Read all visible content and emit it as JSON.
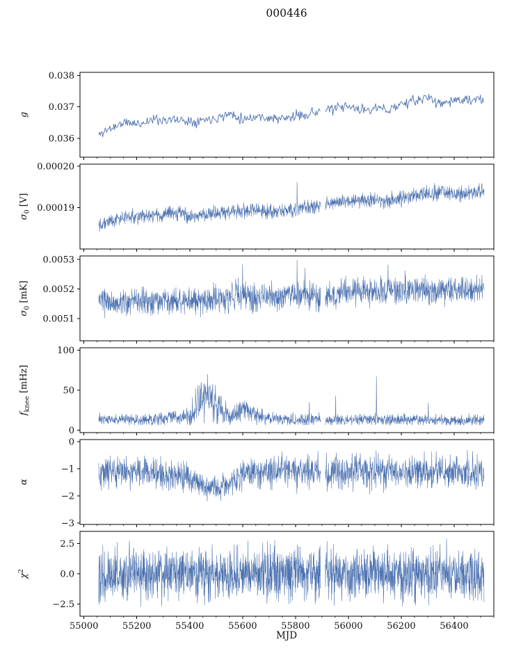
{
  "title": "000446",
  "chart_data": {
    "type": "line",
    "title": "000446",
    "xlabel": "MJD",
    "xlim": [
      54985,
      56550
    ],
    "xticks": [
      55000,
      55200,
      55400,
      55600,
      55800,
      56000,
      56200,
      56400
    ],
    "xtick_labels": [
      "55000",
      "55200",
      "55400",
      "55600",
      "55800",
      "56000",
      "56200",
      "56400"
    ],
    "xminor_step": 50,
    "x_data_range": [
      55056,
      56513
    ],
    "gaps": [
      [
        55896,
        55912
      ]
    ],
    "line_color": "#4c72b0",
    "axis_color": "#000000",
    "panels": [
      {
        "name": "gain",
        "ylabel": [
          {
            "t": "g",
            "i": true
          }
        ],
        "ylim": [
          0.0354,
          0.0381
        ],
        "yticks": [
          0.036,
          0.037,
          0.038
        ],
        "ytick_labels": [
          "0.036",
          "0.037",
          "0.038"
        ],
        "style": "sparse",
        "step": 3,
        "seed": 11,
        "noise": [
          [
            55056,
            8e-05
          ],
          [
            56513,
            8e-05
          ]
        ],
        "trend": [
          [
            55056,
            0.0361
          ],
          [
            55080,
            0.03624
          ],
          [
            55150,
            0.0365
          ],
          [
            55210,
            0.03646
          ],
          [
            55260,
            0.0366
          ],
          [
            55350,
            0.03659
          ],
          [
            55420,
            0.03655
          ],
          [
            55500,
            0.03666
          ],
          [
            55560,
            0.03679
          ],
          [
            55600,
            0.03661
          ],
          [
            55650,
            0.0367
          ],
          [
            55700,
            0.03665
          ],
          [
            55750,
            0.03661
          ],
          [
            55800,
            0.0367
          ],
          [
            55850,
            0.03679
          ],
          [
            55900,
            0.03689
          ],
          [
            55950,
            0.03694
          ],
          [
            56000,
            0.037
          ],
          [
            56050,
            0.0369
          ],
          [
            56100,
            0.03696
          ],
          [
            56150,
            0.0369
          ],
          [
            56200,
            0.0371
          ],
          [
            56250,
            0.03718
          ],
          [
            56300,
            0.0373
          ],
          [
            56350,
            0.0371
          ],
          [
            56400,
            0.03722
          ],
          [
            56450,
            0.0372
          ],
          [
            56513,
            0.03724
          ]
        ],
        "spikes": []
      },
      {
        "name": "sigma0-volts",
        "ylabel": [
          {
            "t": "σ",
            "i": true
          },
          {
            "t": "0",
            "sub": true
          },
          {
            "t": " [V]"
          }
        ],
        "ylim": [
          0.00018,
          0.0002005
        ],
        "yticks": [
          0.00019,
          0.0002
        ],
        "ytick_labels": [
          "0.00019",
          "0.00020"
        ],
        "style": "dense",
        "step": 1,
        "seed": 22,
        "noise": [
          [
            55056,
            8e-07
          ],
          [
            56513,
            9e-07
          ]
        ],
        "trend": [
          [
            55056,
            0.0001862
          ],
          [
            55100,
            0.0001868
          ],
          [
            55150,
            0.0001876
          ],
          [
            55200,
            0.0001878
          ],
          [
            55250,
            0.000188
          ],
          [
            55300,
            0.0001882
          ],
          [
            55350,
            0.0001887
          ],
          [
            55400,
            0.0001882
          ],
          [
            55430,
            0.0001878
          ],
          [
            55470,
            0.0001885
          ],
          [
            55520,
            0.0001888
          ],
          [
            55560,
            0.000189
          ],
          [
            55600,
            0.0001892
          ],
          [
            55650,
            0.0001893
          ],
          [
            55700,
            0.000189
          ],
          [
            55750,
            0.0001892
          ],
          [
            55800,
            0.0001896
          ],
          [
            55850,
            0.00019
          ],
          [
            55880,
            0.0001907
          ],
          [
            55920,
            0.000191
          ],
          [
            55960,
            0.0001912
          ],
          [
            56000,
            0.0001916
          ],
          [
            56050,
            0.0001918
          ],
          [
            56100,
            0.000192
          ],
          [
            56150,
            0.0001916
          ],
          [
            56200,
            0.0001925
          ],
          [
            56250,
            0.0001928
          ],
          [
            56300,
            0.0001934
          ],
          [
            56350,
            0.0001938
          ],
          [
            56400,
            0.0001932
          ],
          [
            56450,
            0.0001936
          ],
          [
            56513,
            0.0001938
          ]
        ],
        "spikes": [
          [
            55806,
            0.0001962
          ]
        ]
      },
      {
        "name": "sigma0-mk",
        "ylabel": [
          {
            "t": "σ",
            "i": true
          },
          {
            "t": "0",
            "sub": true
          },
          {
            "t": " [mK]"
          }
        ],
        "ylim": [
          0.005025,
          0.005312
        ],
        "yticks": [
          0.0051,
          0.0052,
          0.0053
        ],
        "ytick_labels": [
          "0.0051",
          "0.0052",
          "0.0053"
        ],
        "style": "dense",
        "step": 1,
        "seed": 33,
        "noise": [
          [
            55056,
            2e-05
          ],
          [
            55560,
            2.4e-05
          ],
          [
            56000,
            2.2e-05
          ],
          [
            56513,
            2.2e-05
          ]
        ],
        "trend": [
          [
            55056,
            0.00516
          ],
          [
            55120,
            0.00515
          ],
          [
            55180,
            0.005155
          ],
          [
            55250,
            0.005158
          ],
          [
            55320,
            0.00516
          ],
          [
            55400,
            0.005158
          ],
          [
            55470,
            0.005165
          ],
          [
            55540,
            0.00517
          ],
          [
            55580,
            0.005185
          ],
          [
            55620,
            0.005175
          ],
          [
            55700,
            0.00517
          ],
          [
            55780,
            0.00518
          ],
          [
            55850,
            0.005178
          ],
          [
            55920,
            0.00518
          ],
          [
            56000,
            0.00519
          ],
          [
            56080,
            0.005188
          ],
          [
            56160,
            0.005195
          ],
          [
            56240,
            0.005198
          ],
          [
            56320,
            0.005192
          ],
          [
            56400,
            0.0052
          ],
          [
            56460,
            0.005196
          ],
          [
            56513,
            0.0052
          ]
        ],
        "spikes": [
          [
            55600,
            0.005285
          ],
          [
            55806,
            0.005298
          ],
          [
            55836,
            0.005272
          ],
          [
            56150,
            0.005282
          ],
          [
            56214,
            0.005262
          ]
        ]
      },
      {
        "name": "fknee",
        "ylabel": [
          {
            "t": "f",
            "i": true
          },
          {
            "t": "knee",
            "sub": true
          },
          {
            "t": " [mHz]"
          }
        ],
        "ylim": [
          -3,
          103
        ],
        "yticks": [
          0,
          50,
          100
        ],
        "ytick_labels": [
          "0",
          "50",
          "100"
        ],
        "style": "dense",
        "step": 1,
        "seed": 44,
        "clamp": [
          6.5,
          102
        ],
        "noise": [
          [
            55056,
            3.5
          ],
          [
            55320,
            4.5
          ],
          [
            55360,
            3.5
          ],
          [
            55410,
            8
          ],
          [
            55440,
            16
          ],
          [
            55490,
            14
          ],
          [
            55530,
            8
          ],
          [
            55560,
            5
          ],
          [
            55590,
            7
          ],
          [
            55640,
            6
          ],
          [
            55690,
            3.5
          ],
          [
            56513,
            3.5
          ]
        ],
        "trend": [
          [
            55056,
            14
          ],
          [
            55120,
            13
          ],
          [
            55200,
            13
          ],
          [
            55280,
            14
          ],
          [
            55330,
            17
          ],
          [
            55360,
            15
          ],
          [
            55400,
            16
          ],
          [
            55425,
            28
          ],
          [
            55445,
            45
          ],
          [
            55465,
            46
          ],
          [
            55485,
            40
          ],
          [
            55505,
            30
          ],
          [
            55525,
            22
          ],
          [
            55550,
            18
          ],
          [
            55580,
            22
          ],
          [
            55605,
            27
          ],
          [
            55630,
            24
          ],
          [
            55660,
            18
          ],
          [
            55700,
            15
          ],
          [
            55760,
            14
          ],
          [
            55850,
            13
          ],
          [
            55950,
            13
          ],
          [
            56050,
            13
          ],
          [
            56150,
            13
          ],
          [
            56250,
            13
          ],
          [
            56350,
            12
          ],
          [
            56513,
            12
          ]
        ],
        "spikes": [
          [
            55852,
            35
          ],
          [
            55952,
            43
          ],
          [
            56106,
            67
          ],
          [
            56302,
            34
          ]
        ]
      },
      {
        "name": "alpha",
        "ylabel": [
          {
            "t": "α",
            "i": true
          }
        ],
        "ylim": [
          -3.05,
          0.08
        ],
        "yticks": [
          0,
          -1,
          -2,
          -3
        ],
        "ytick_labels": [
          "0",
          "−1",
          "−2",
          "−3"
        ],
        "style": "dense",
        "step": 1,
        "seed": 55,
        "clamp": [
          -2.9,
          -0.05
        ],
        "noise": [
          [
            55056,
            0.3
          ],
          [
            55300,
            0.26
          ],
          [
            55430,
            0.22
          ],
          [
            55550,
            0.24
          ],
          [
            55620,
            0.3
          ],
          [
            56513,
            0.3
          ]
        ],
        "trend": [
          [
            55056,
            -1.1
          ],
          [
            55150,
            -1.08
          ],
          [
            55250,
            -1.12
          ],
          [
            55300,
            -1.22
          ],
          [
            55350,
            -1.28
          ],
          [
            55400,
            -1.3
          ],
          [
            55430,
            -1.5
          ],
          [
            55470,
            -1.68
          ],
          [
            55510,
            -1.7
          ],
          [
            55550,
            -1.6
          ],
          [
            55580,
            -1.38
          ],
          [
            55620,
            -1.18
          ],
          [
            55680,
            -1.1
          ],
          [
            55800,
            -1.12
          ],
          [
            55950,
            -1.12
          ],
          [
            56100,
            -1.1
          ],
          [
            56250,
            -1.12
          ],
          [
            56400,
            -1.1
          ],
          [
            56513,
            -1.1
          ]
        ],
        "spikes": []
      },
      {
        "name": "chi2",
        "ylabel": [
          {
            "t": "χ",
            "i": true
          },
          {
            "t": "2",
            "sup": true
          }
        ],
        "ylim": [
          -3.5,
          3.5
        ],
        "yticks": [
          -2.5,
          0,
          2.5
        ],
        "ytick_labels": [
          "−2.5",
          "0.0",
          "2.5"
        ],
        "style": "dense",
        "step": 0.8,
        "seed": 66,
        "clamp": [
          -3.3,
          3.3
        ],
        "noise": [
          [
            55056,
            1.05
          ],
          [
            56513,
            1.05
          ]
        ],
        "trend": [
          [
            55056,
            0
          ],
          [
            56513,
            0
          ]
        ],
        "spikes": []
      }
    ]
  }
}
